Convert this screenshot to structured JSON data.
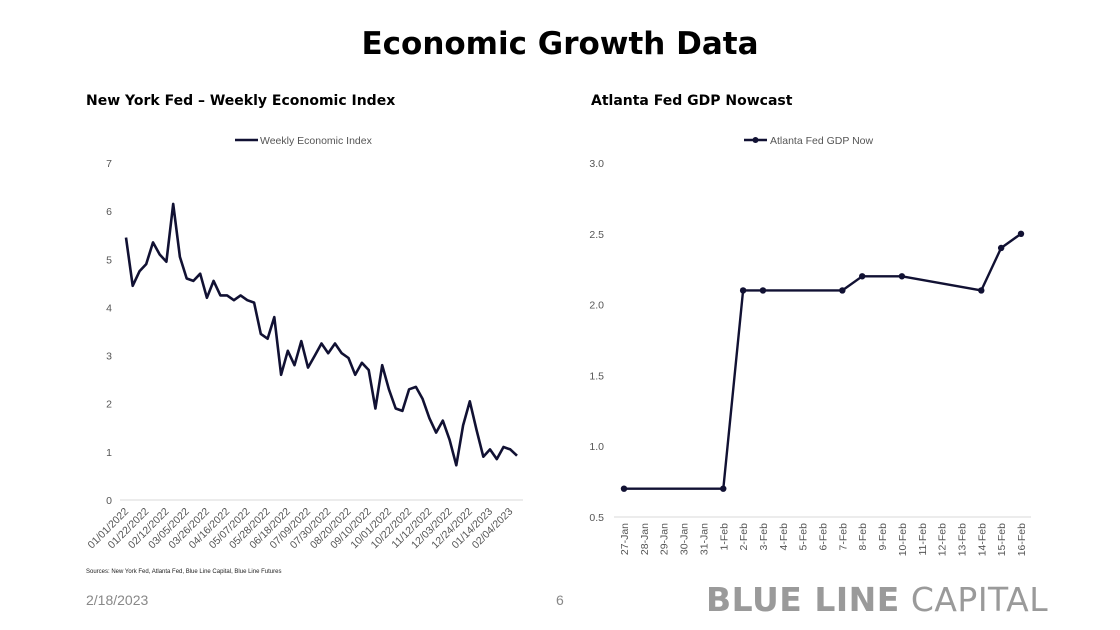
{
  "page": {
    "title": "Economic Growth Data",
    "sources": "Sources: New York Fed, Atlanta Fed, Blue Line Capital, Blue Line Futures",
    "date": "2/18/2023",
    "page_number": "6",
    "brand_bold": "BLUE LINE",
    "brand_light": "CAPITAL"
  },
  "chart_data": [
    {
      "type": "line",
      "title": "New York Fed – Weekly Economic Index",
      "legend": "Weekly Economic Index",
      "legend_position": "top-center",
      "color": "#111133",
      "ylim": [
        0,
        7
      ],
      "yticks": [
        0,
        1,
        2,
        3,
        4,
        5,
        6,
        7
      ],
      "xtick_labels": [
        "01/01/2022",
        "01/22/2022",
        "02/12/2022",
        "03/05/2022",
        "03/26/2022",
        "04/16/2022",
        "05/07/2022",
        "05/28/2022",
        "06/18/2022",
        "07/09/2022",
        "07/30/2022",
        "08/20/2022",
        "09/10/2022",
        "10/01/2022",
        "10/22/2022",
        "11/12/2022",
        "12/03/2022",
        "12/24/2022",
        "01/14/2023",
        "02/04/2023"
      ],
      "values": [
        5.45,
        4.45,
        4.75,
        4.9,
        5.35,
        5.1,
        4.95,
        6.15,
        5.05,
        4.6,
        4.55,
        4.7,
        4.2,
        4.55,
        4.25,
        4.25,
        4.15,
        4.25,
        4.15,
        4.1,
        3.45,
        3.35,
        3.8,
        2.6,
        3.1,
        2.8,
        3.3,
        2.75,
        3.0,
        3.25,
        3.05,
        3.25,
        3.05,
        2.95,
        2.6,
        2.85,
        2.7,
        1.9,
        2.8,
        2.3,
        1.9,
        1.85,
        2.3,
        2.35,
        2.1,
        1.7,
        1.4,
        1.65,
        1.25,
        0.72,
        1.55,
        2.05,
        1.45,
        0.9,
        1.05,
        0.85,
        1.1,
        1.05,
        0.92
      ],
      "grid": false
    },
    {
      "type": "line",
      "title": "Atlanta Fed GDP Nowcast",
      "legend": "Atlanta Fed GDP Now",
      "legend_position": "top-center",
      "color": "#111133",
      "ylim": [
        0.5,
        3.0
      ],
      "yticks": [
        "0.5",
        "1.0",
        "1.5",
        "2.0",
        "2.5",
        "3.0"
      ],
      "categories": [
        "27-Jan",
        "28-Jan",
        "29-Jan",
        "30-Jan",
        "31-Jan",
        "1-Feb",
        "2-Feb",
        "3-Feb",
        "4-Feb",
        "5-Feb",
        "6-Feb",
        "7-Feb",
        "8-Feb",
        "9-Feb",
        "10-Feb",
        "11-Feb",
        "12-Feb",
        "13-Feb",
        "14-Feb",
        "15-Feb",
        "16-Feb"
      ],
      "points": [
        {
          "x": "27-Jan",
          "y": 0.7
        },
        {
          "x": "1-Feb",
          "y": 0.7
        },
        {
          "x": "2-Feb",
          "y": 2.1
        },
        {
          "x": "3-Feb",
          "y": 2.1
        },
        {
          "x": "7-Feb",
          "y": 2.1
        },
        {
          "x": "8-Feb",
          "y": 2.2
        },
        {
          "x": "10-Feb",
          "y": 2.2
        },
        {
          "x": "14-Feb",
          "y": 2.1
        },
        {
          "x": "15-Feb",
          "y": 2.4
        },
        {
          "x": "16-Feb",
          "y": 2.5
        }
      ],
      "grid": false
    }
  ]
}
